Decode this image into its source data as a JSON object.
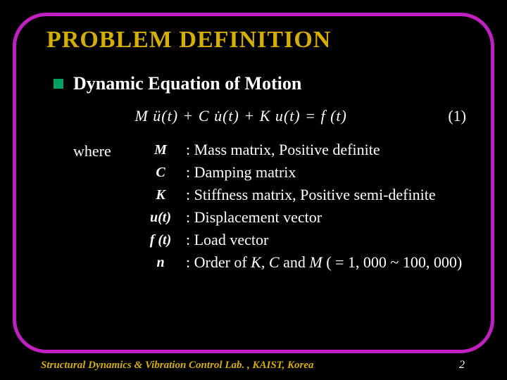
{
  "title": "PROBLEM  DEFINITION",
  "bullet": "Dynamic Equation of Motion",
  "equation_display": "M ü(t) + C u̇(t) + K u(t) = f (t)",
  "equation_number": "(1)",
  "where_label": "where",
  "defs": [
    {
      "sym": "M",
      "desc": ": Mass matrix, Positive definite"
    },
    {
      "sym": "C",
      "desc": ": Damping matrix"
    },
    {
      "sym": "K",
      "desc": ": Stiffness matrix, Positive semi-definite"
    },
    {
      "sym": "u(t)",
      "desc": ": Displacement vector"
    },
    {
      "sym": "f (t)",
      "desc": ": Load vector"
    },
    {
      "sym": "n",
      "desc_html": ": Order of <i>K, C</i> and <i>M</i> ( = 1, 000 ~ 100, 000)"
    }
  ],
  "footer": "Structural Dynamics & Vibration Control Lab. , KAIST, Korea",
  "page": "2",
  "colors": {
    "background": "#000000",
    "frame": "#c020c0",
    "title": "#d4af00",
    "bullet_square": "#00a060",
    "text": "#ffffff",
    "footer": "#d4af00"
  }
}
